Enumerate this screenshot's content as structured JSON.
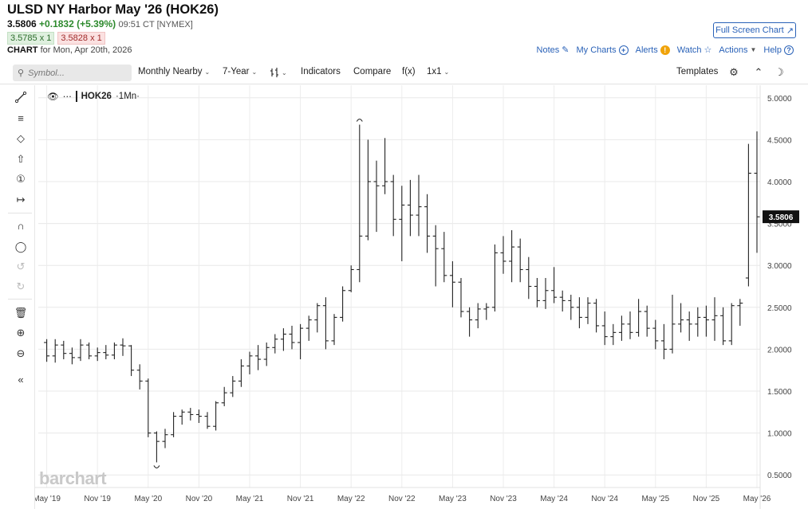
{
  "header": {
    "title": "ULSD NY Harbor May '26 (HOK26)",
    "last": "3.5806",
    "change": "+0.1832 (+5.39%)",
    "time": "09:51 CT [NYMEX]",
    "bid": "3.5785 x 1",
    "ask": "3.5828 x 1",
    "chart_label": "CHART",
    "chart_date": "for Mon, Apr 20th, 2026",
    "fullscreen_label": "Full Screen Chart"
  },
  "toplinks": {
    "notes": "Notes",
    "my_charts": "My Charts",
    "alerts": "Alerts",
    "watch": "Watch",
    "actions": "Actions",
    "help": "Help"
  },
  "toolbar": {
    "symbol_placeholder": "Symbol...",
    "period": "Monthly Nearby",
    "range": "7-Year",
    "indicators": "Indicators",
    "compare": "Compare",
    "fx": "f(x)",
    "layout": "1x1",
    "templates": "Templates"
  },
  "legend": {
    "symbol": "HOK26",
    "interval": "·1Mn·"
  },
  "watermark": "barchart",
  "colors": {
    "accent": "#2a62b8",
    "positive": "#2d8a2d",
    "negative": "#a12b2b",
    "bars": "#222222",
    "grid": "#e6e6e6"
  },
  "chart_data": {
    "type": "ohlc",
    "interval": "monthly",
    "last_price_label": "3.5806",
    "ylim": [
      0.35,
      5.15
    ],
    "y_ticks": [
      "5.0000",
      "4.5000",
      "4.0000",
      "3.5000",
      "3.0000",
      "2.5000",
      "2.0000",
      "1.5000",
      "1.0000",
      "0.5000"
    ],
    "x_ticks": [
      {
        "label": "May '19",
        "month_index": 0
      },
      {
        "label": "Nov '19",
        "month_index": 6
      },
      {
        "label": "May '20",
        "month_index": 12
      },
      {
        "label": "Nov '20",
        "month_index": 18
      },
      {
        "label": "May '21",
        "month_index": 24
      },
      {
        "label": "Nov '21",
        "month_index": 30
      },
      {
        "label": "May '22",
        "month_index": 36
      },
      {
        "label": "Nov '22",
        "month_index": 42
      },
      {
        "label": "May '23",
        "month_index": 48
      },
      {
        "label": "Nov '23",
        "month_index": 54
      },
      {
        "label": "May '24",
        "month_index": 60
      },
      {
        "label": "Nov '24",
        "month_index": 66
      },
      {
        "label": "May '25",
        "month_index": 72
      },
      {
        "label": "Nov '25",
        "month_index": 78
      },
      {
        "label": "May '26",
        "month_index": 84
      }
    ],
    "month_index_offset": -1,
    "ohlc": [
      [
        2.08,
        2.12,
        1.85,
        1.92
      ],
      [
        1.92,
        2.12,
        1.84,
        2.05
      ],
      [
        2.05,
        2.1,
        1.88,
        1.95
      ],
      [
        1.95,
        2.02,
        1.82,
        1.9
      ],
      [
        1.9,
        2.12,
        1.86,
        2.05
      ],
      [
        2.05,
        2.08,
        1.88,
        1.92
      ],
      [
        1.92,
        2.02,
        1.86,
        1.96
      ],
      [
        1.96,
        2.05,
        1.88,
        1.93
      ],
      [
        1.93,
        2.08,
        1.88,
        2.05
      ],
      [
        2.05,
        2.13,
        1.92,
        2.04
      ],
      [
        2.04,
        2.05,
        1.68,
        1.75
      ],
      [
        1.75,
        1.82,
        1.52,
        1.62
      ],
      [
        1.62,
        1.65,
        0.95,
        1.0
      ],
      [
        1.0,
        1.02,
        0.65,
        0.9
      ],
      [
        0.9,
        1.05,
        0.82,
        0.98
      ],
      [
        0.98,
        1.25,
        0.95,
        1.2
      ],
      [
        1.2,
        1.28,
        1.1,
        1.25
      ],
      [
        1.25,
        1.3,
        1.15,
        1.22
      ],
      [
        1.22,
        1.28,
        1.12,
        1.2
      ],
      [
        1.2,
        1.25,
        1.05,
        1.08
      ],
      [
        1.08,
        1.38,
        1.03,
        1.36
      ],
      [
        1.36,
        1.55,
        1.32,
        1.48
      ],
      [
        1.48,
        1.68,
        1.43,
        1.62
      ],
      [
        1.62,
        1.88,
        1.55,
        1.8
      ],
      [
        1.8,
        1.97,
        1.7,
        1.92
      ],
      [
        1.92,
        2.05,
        1.75,
        1.88
      ],
      [
        1.88,
        2.08,
        1.8,
        2.02
      ],
      [
        2.02,
        2.18,
        1.95,
        2.12
      ],
      [
        2.12,
        2.25,
        1.98,
        2.18
      ],
      [
        2.18,
        2.28,
        2.0,
        2.08
      ],
      [
        2.08,
        2.3,
        1.88,
        2.25
      ],
      [
        2.25,
        2.4,
        2.1,
        2.35
      ],
      [
        2.35,
        2.55,
        2.2,
        2.52
      ],
      [
        2.52,
        2.62,
        2.0,
        2.1
      ],
      [
        2.1,
        2.42,
        2.05,
        2.38
      ],
      [
        2.38,
        2.75,
        2.33,
        2.7
      ],
      [
        2.7,
        3.0,
        2.68,
        2.95
      ],
      [
        2.95,
        4.68,
        2.8,
        3.35
      ],
      [
        3.35,
        4.5,
        3.3,
        4.0
      ],
      [
        4.0,
        4.25,
        3.4,
        3.95
      ],
      [
        3.95,
        4.52,
        3.85,
        4.0
      ],
      [
        4.0,
        4.08,
        3.35,
        3.55
      ],
      [
        3.55,
        3.95,
        3.05,
        3.72
      ],
      [
        3.72,
        4.02,
        3.35,
        3.6
      ],
      [
        3.6,
        4.08,
        3.35,
        3.7
      ],
      [
        3.7,
        3.85,
        3.15,
        3.35
      ],
      [
        3.35,
        3.48,
        2.75,
        3.2
      ],
      [
        3.2,
        3.4,
        2.8,
        2.88
      ],
      [
        2.88,
        3.05,
        2.5,
        2.8
      ],
      [
        2.8,
        2.85,
        2.38,
        2.45
      ],
      [
        2.45,
        2.5,
        2.15,
        2.35
      ],
      [
        2.35,
        2.55,
        2.25,
        2.48
      ],
      [
        2.48,
        2.55,
        2.35,
        2.5
      ],
      [
        2.5,
        3.25,
        2.45,
        3.15
      ],
      [
        3.15,
        3.35,
        2.9,
        3.05
      ],
      [
        3.05,
        3.42,
        2.8,
        3.22
      ],
      [
        3.22,
        3.32,
        2.8,
        2.95
      ],
      [
        2.95,
        3.1,
        2.6,
        2.75
      ],
      [
        2.75,
        2.85,
        2.5,
        2.58
      ],
      [
        2.58,
        2.85,
        2.48,
        2.7
      ],
      [
        2.7,
        2.98,
        2.55,
        2.62
      ],
      [
        2.62,
        2.7,
        2.45,
        2.58
      ],
      [
        2.58,
        2.65,
        2.35,
        2.5
      ],
      [
        2.5,
        2.62,
        2.25,
        2.38
      ],
      [
        2.38,
        2.62,
        2.3,
        2.55
      ],
      [
        2.55,
        2.6,
        2.2,
        2.28
      ],
      [
        2.28,
        2.45,
        2.05,
        2.15
      ],
      [
        2.15,
        2.3,
        2.05,
        2.2
      ],
      [
        2.2,
        2.4,
        2.1,
        2.3
      ],
      [
        2.3,
        2.45,
        2.12,
        2.2
      ],
      [
        2.2,
        2.6,
        2.15,
        2.45
      ],
      [
        2.45,
        2.52,
        2.15,
        2.25
      ],
      [
        2.25,
        2.35,
        2.0,
        2.1
      ],
      [
        2.1,
        2.3,
        1.88,
        2.0
      ],
      [
        2.0,
        2.65,
        1.95,
        2.3
      ],
      [
        2.3,
        2.55,
        2.2,
        2.35
      ],
      [
        2.35,
        2.45,
        2.1,
        2.3
      ],
      [
        2.3,
        2.5,
        2.15,
        2.38
      ],
      [
        2.38,
        2.52,
        2.15,
        2.35
      ],
      [
        2.35,
        2.62,
        2.1,
        2.4
      ],
      [
        2.4,
        2.5,
        2.05,
        2.1
      ],
      [
        2.1,
        2.55,
        2.05,
        2.52
      ],
      [
        2.52,
        2.6,
        2.28,
        2.55
      ],
      [
        2.85,
        4.45,
        2.75,
        4.1
      ],
      [
        4.1,
        4.6,
        3.15,
        3.58
      ]
    ]
  }
}
